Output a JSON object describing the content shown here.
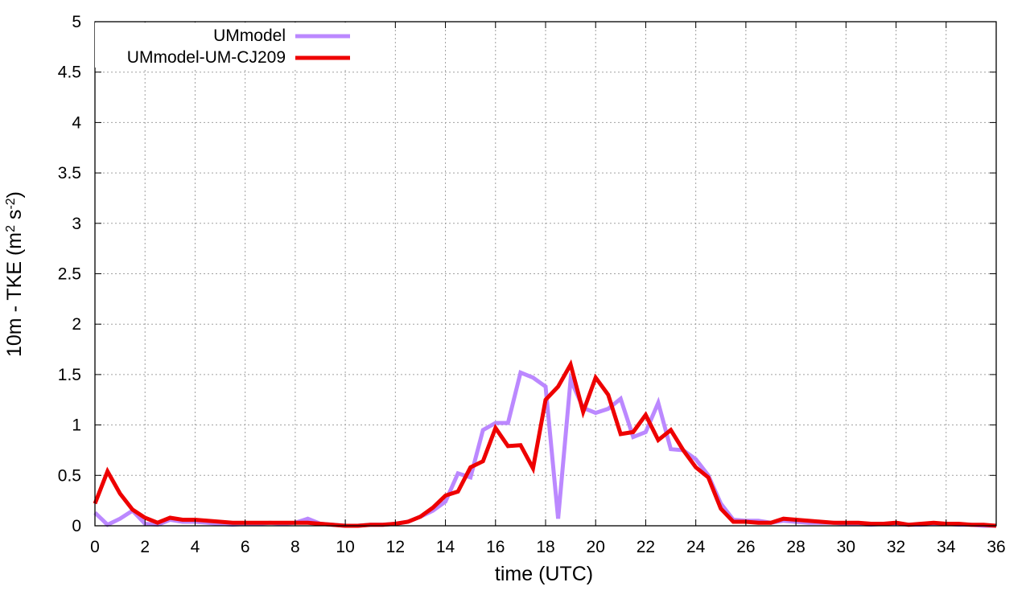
{
  "chart_data": {
    "type": "line",
    "title": "",
    "xlabel": "time (UTC)",
    "ylabel": "10m - TKE (m² s⁻²)",
    "ylabel_parts": {
      "base": "10m - TKE (m",
      "sup1": "2",
      "mid": " s",
      "sup2": "-2",
      "end": ")"
    },
    "xlim": [
      0,
      36
    ],
    "ylim": [
      0,
      5
    ],
    "xticks": [
      0,
      2,
      4,
      6,
      8,
      10,
      12,
      14,
      16,
      18,
      20,
      22,
      24,
      26,
      28,
      30,
      32,
      34,
      36
    ],
    "yticks": [
      0,
      0.5,
      1,
      1.5,
      2,
      2.5,
      3,
      3.5,
      4,
      4.5,
      5
    ],
    "xtick_labels": [
      "0",
      "2",
      "4",
      "6",
      "8",
      "10",
      "12",
      "14",
      "16",
      "18",
      "20",
      "22",
      "24",
      "26",
      "28",
      "30",
      "32",
      "34",
      "36"
    ],
    "ytick_labels": [
      "0",
      "0.5",
      "1",
      "1.5",
      "2",
      "2.5",
      "3",
      "3.5",
      "4",
      "4.5",
      "5"
    ],
    "grid": true,
    "legend_position": "top-left",
    "series": [
      {
        "name": "UMmodel",
        "color": "#bb88ff",
        "x": [
          0,
          0.5,
          1,
          1.5,
          2,
          2.5,
          3,
          3.5,
          4,
          4.5,
          5,
          5.5,
          6,
          6.5,
          7,
          7.5,
          8,
          8.5,
          9,
          9.5,
          10,
          10.5,
          11,
          11.5,
          12,
          12.5,
          13,
          13.5,
          14,
          14.5,
          15,
          15.5,
          16,
          16.5,
          17,
          17.5,
          18,
          18.5,
          19,
          19.5,
          20,
          20.5,
          21,
          21.5,
          22,
          22.5,
          23,
          23.5,
          24,
          24.5,
          25,
          25.5,
          26,
          26.5,
          27,
          27.5,
          28,
          28.5,
          29,
          29.5,
          30,
          30.5,
          31,
          31.5,
          32,
          32.5,
          33,
          33.5,
          34,
          34.5,
          35,
          35.5,
          36
        ],
        "y": [
          0.13,
          0.01,
          0.07,
          0.15,
          0.02,
          0.01,
          0.06,
          0.04,
          0.04,
          0.03,
          0.02,
          0.01,
          0.02,
          0.02,
          0.03,
          0.02,
          0.03,
          0.07,
          0.02,
          0.01,
          0.0,
          0.0,
          0.01,
          0.01,
          0.02,
          0.04,
          0.09,
          0.15,
          0.24,
          0.52,
          0.48,
          0.95,
          1.02,
          1.02,
          1.52,
          1.47,
          1.38,
          0.07,
          1.45,
          1.17,
          1.12,
          1.16,
          1.26,
          0.88,
          0.93,
          1.22,
          0.76,
          0.75,
          0.66,
          0.5,
          0.22,
          0.06,
          0.05,
          0.05,
          0.03,
          0.05,
          0.04,
          0.03,
          0.03,
          0.03,
          0.02,
          0.02,
          0.01,
          0.02,
          0.02,
          0.01,
          0.01,
          0.02,
          0.02,
          0.01,
          0.01,
          0.0,
          0.0
        ]
      },
      {
        "name": "UMmodel-UM-CJ209",
        "color": "#ee0000",
        "x": [
          0,
          0.5,
          1,
          1.5,
          2,
          2.5,
          3,
          3.5,
          4,
          4.5,
          5,
          5.5,
          6,
          6.5,
          7,
          7.5,
          8,
          8.5,
          9,
          9.5,
          10,
          10.5,
          11,
          11.5,
          12,
          12.5,
          13,
          13.5,
          14,
          14.5,
          15,
          15.5,
          16,
          16.5,
          17,
          17.5,
          18,
          18.5,
          19,
          19.5,
          20,
          20.5,
          21,
          21.5,
          22,
          22.5,
          23,
          23.5,
          24,
          24.5,
          25,
          25.5,
          26,
          26.5,
          27,
          27.5,
          28,
          28.5,
          29,
          29.5,
          30,
          30.5,
          31,
          31.5,
          32,
          32.5,
          33,
          33.5,
          34,
          34.5,
          35,
          35.5,
          36
        ],
        "y": [
          0.22,
          0.54,
          0.32,
          0.16,
          0.08,
          0.03,
          0.08,
          0.06,
          0.06,
          0.05,
          0.04,
          0.03,
          0.03,
          0.03,
          0.03,
          0.03,
          0.03,
          0.03,
          0.02,
          0.01,
          0.0,
          0.0,
          0.01,
          0.01,
          0.02,
          0.04,
          0.09,
          0.18,
          0.3,
          0.34,
          0.58,
          0.64,
          0.97,
          0.79,
          0.8,
          0.57,
          1.25,
          1.38,
          1.6,
          1.13,
          1.47,
          1.3,
          0.91,
          0.93,
          1.1,
          0.85,
          0.95,
          0.75,
          0.58,
          0.48,
          0.17,
          0.04,
          0.04,
          0.03,
          0.03,
          0.07,
          0.06,
          0.05,
          0.04,
          0.03,
          0.03,
          0.03,
          0.02,
          0.02,
          0.03,
          0.01,
          0.02,
          0.03,
          0.02,
          0.02,
          0.01,
          0.01,
          0.0
        ]
      }
    ]
  }
}
